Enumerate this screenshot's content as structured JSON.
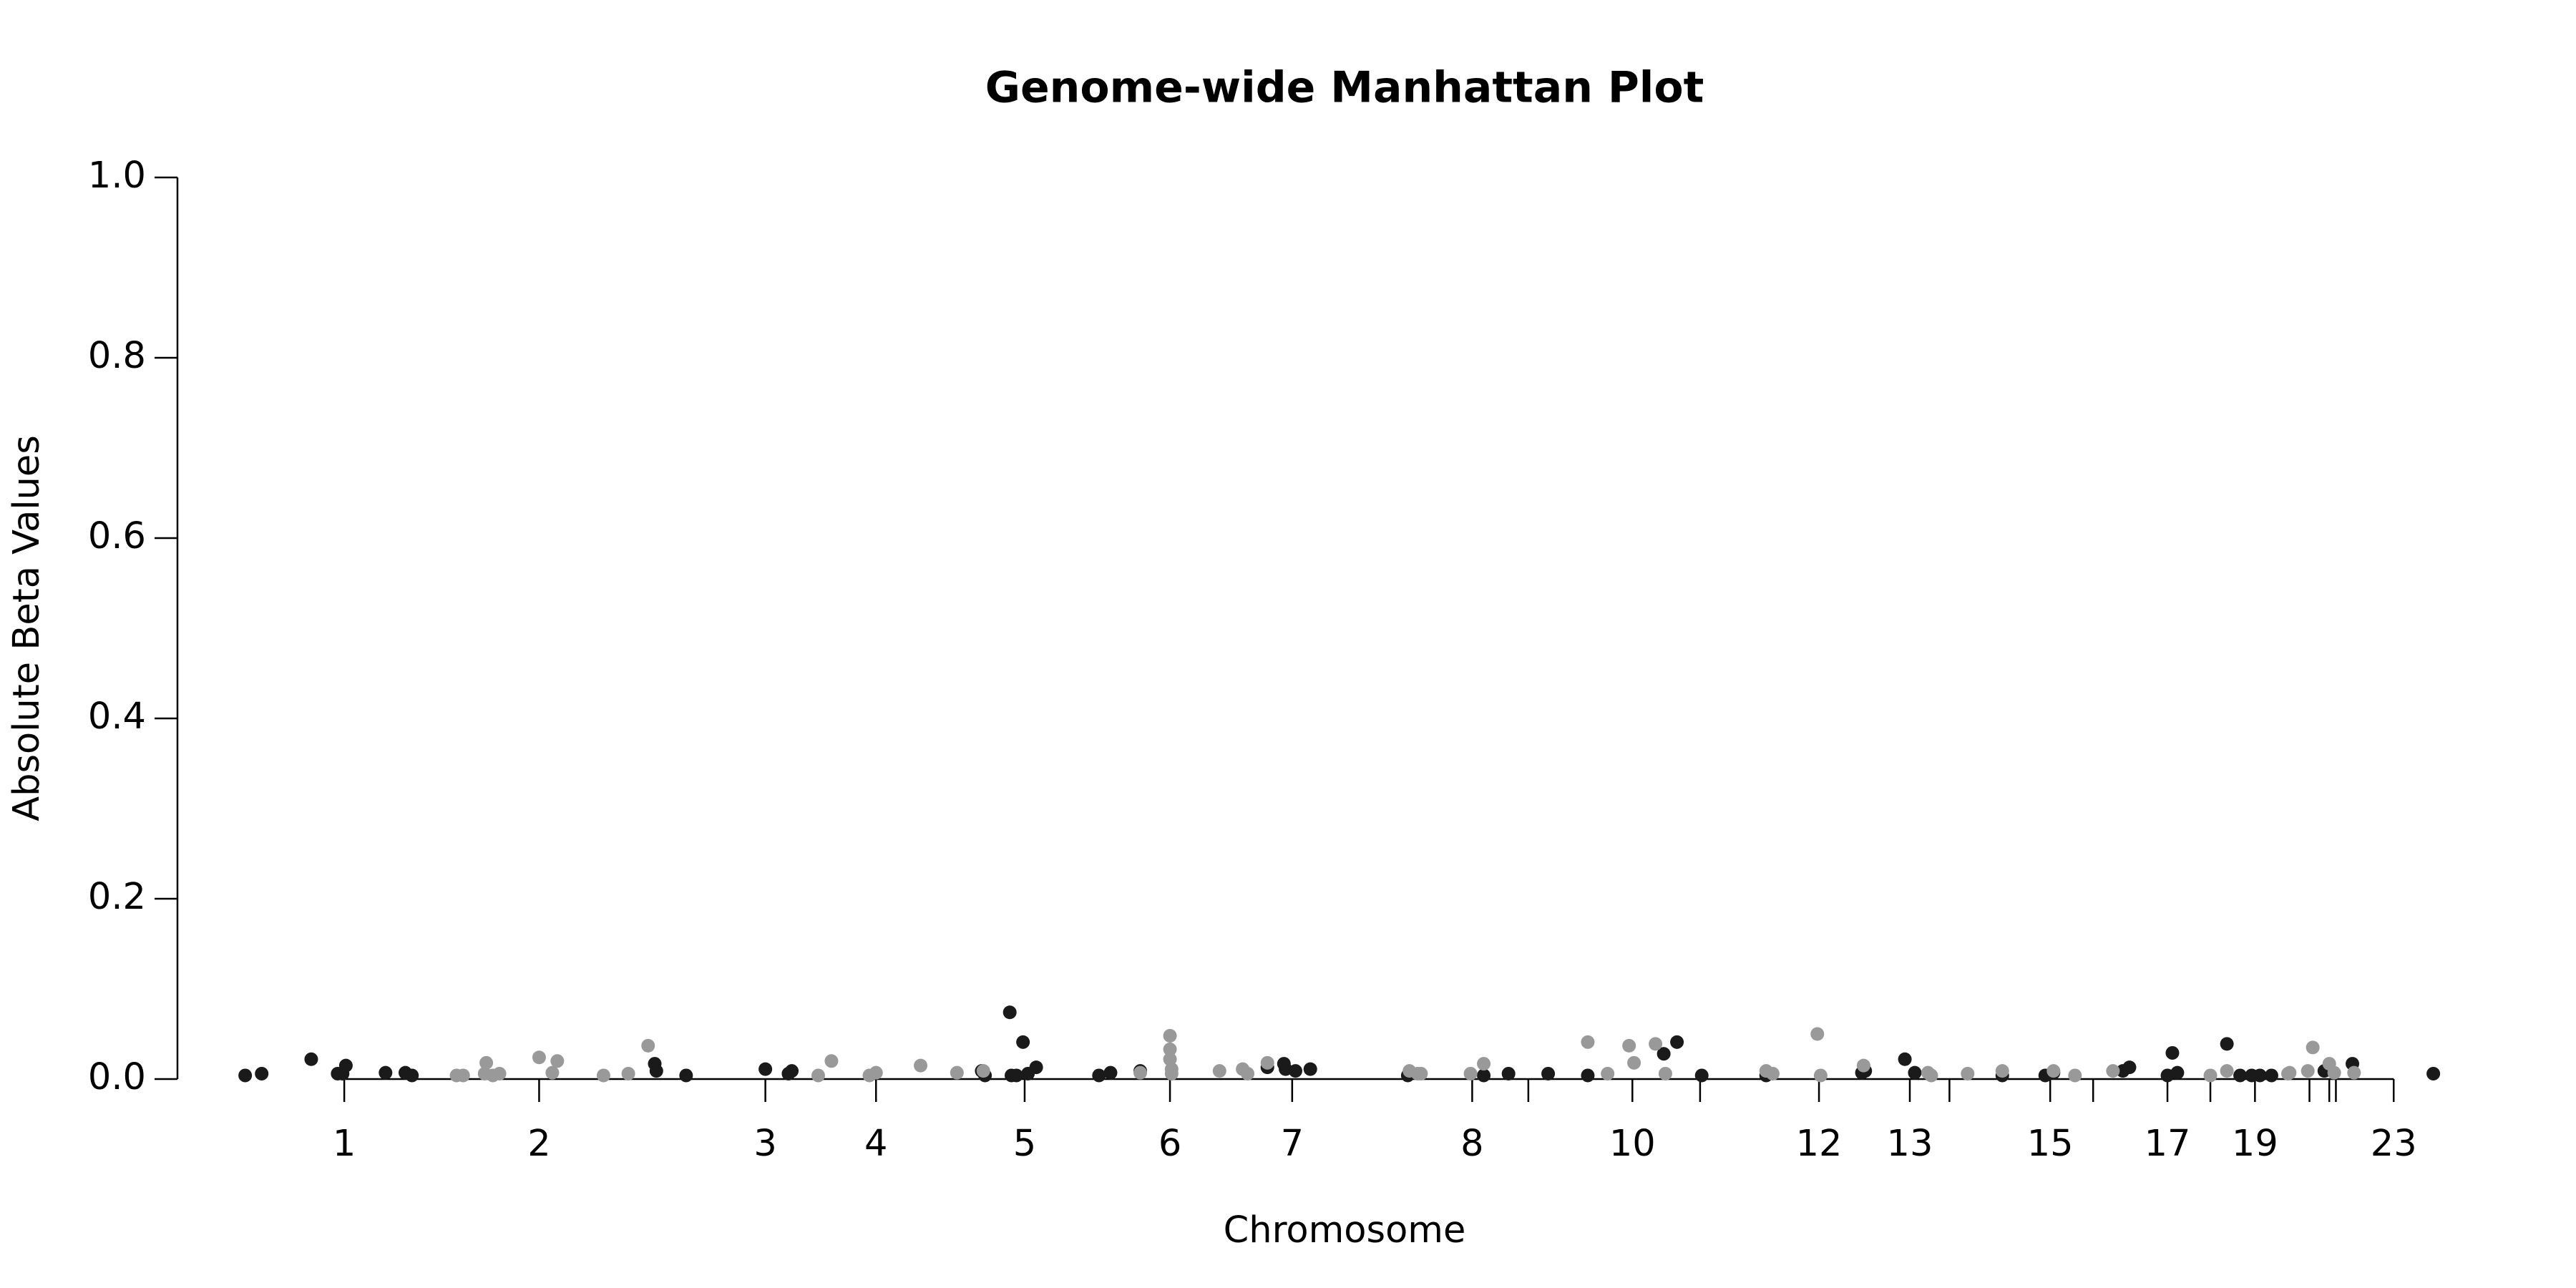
{
  "chart_data": {
    "type": "scatter",
    "title": "Genome-wide Manhattan Plot",
    "x_label": "Chromosome",
    "y_label": "Absolute Beta Values",
    "xlim": [
      0,
      1390
    ],
    "ylim": [
      0,
      1
    ],
    "yticks": [
      {
        "value": 0,
        "label": "0.0"
      },
      0.2,
      0.4,
      0.6,
      0.8,
      {
        "value": 1,
        "label": "1.0"
      }
    ],
    "xticks": [
      {
        "value": 101,
        "label": "1"
      },
      {
        "value": 219,
        "label": "2"
      },
      {
        "value": 356,
        "label": "3"
      },
      {
        "value": 423,
        "label": "4"
      },
      {
        "value": 513,
        "label": "5"
      },
      {
        "value": 601,
        "label": "6"
      },
      {
        "value": 675,
        "label": "7"
      },
      {
        "value": 784,
        "label": "8"
      },
      {
        "value": 818,
        "label": null
      },
      {
        "value": 881,
        "label": "10"
      },
      {
        "value": 922,
        "label": null
      },
      {
        "value": 994,
        "label": "12"
      },
      {
        "value": 1049,
        "label": "13"
      },
      {
        "value": 1073,
        "label": null
      },
      {
        "value": 1134,
        "label": "15"
      },
      {
        "value": 1160,
        "label": null
      },
      {
        "value": 1205,
        "label": "17"
      },
      {
        "value": 1231,
        "label": null
      },
      {
        "value": 1258,
        "label": "19"
      },
      {
        "value": 1291,
        "label": null
      },
      {
        "value": 1303,
        "label": null
      },
      {
        "value": 1307,
        "label": null
      },
      {
        "value": 1342,
        "label": "23"
      }
    ],
    "series": [
      {
        "color": "#1a1a1a",
        "x": [
          41,
          51,
          81,
          97,
          100,
          102,
          126,
          138,
          142,
          289,
          290,
          308,
          356,
          370,
          372,
          487,
          489,
          504,
          505,
          508,
          512,
          515,
          520,
          558,
          565,
          583,
          660,
          670,
          671,
          677,
          686,
          745,
          791,
          806,
          830,
          854,
          900,
          908,
          923,
          962,
          1020,
          1022,
          1046,
          1052,
          1105,
          1131,
          1136,
          1178,
          1182,
          1205,
          1208,
          1211,
          1241,
          1249,
          1256,
          1261,
          1268,
          1300,
          1317,
          1366
        ],
        "values": [
          0.004,
          0.006,
          0.022,
          0.006,
          0.006,
          0.015,
          0.007,
          0.007,
          0.004,
          0.017,
          0.009,
          0.004,
          0.011,
          0.006,
          0.009,
          0.009,
          0.004,
          0.074,
          0.004,
          0.004,
          0.041,
          0.006,
          0.013,
          0.004,
          0.007,
          0.009,
          0.013,
          0.017,
          0.011,
          0.009,
          0.011,
          0.004,
          0.004,
          0.006,
          0.006,
          0.004,
          0.028,
          0.041,
          0.004,
          0.004,
          0.007,
          0.009,
          0.022,
          0.007,
          0.004,
          0.004,
          0.007,
          0.009,
          0.013,
          0.004,
          0.029,
          0.007,
          0.039,
          0.004,
          0.004,
          0.004,
          0.004,
          0.009,
          0.017,
          0.006
        ]
      },
      {
        "color": "#999999",
        "x": [
          169,
          173,
          186,
          187,
          191,
          195,
          219,
          227,
          230,
          258,
          273,
          285,
          388,
          396,
          419,
          423,
          450,
          472,
          488,
          583,
          601,
          601,
          601,
          602,
          602,
          631,
          645,
          648,
          660,
          746,
          751,
          753,
          783,
          791,
          854,
          866,
          879,
          882,
          895,
          901,
          962,
          966,
          993,
          995,
          1021,
          1060,
          1062,
          1084,
          1105,
          1136,
          1149,
          1172,
          1231,
          1241,
          1278,
          1279,
          1290,
          1293,
          1303,
          1306,
          1318
        ],
        "values": [
          0.004,
          0.004,
          0.006,
          0.018,
          0.004,
          0.006,
          0.024,
          0.007,
          0.02,
          0.004,
          0.006,
          0.037,
          0.004,
          0.02,
          0.004,
          0.007,
          0.015,
          0.007,
          0.009,
          0.007,
          0.048,
          0.033,
          0.022,
          0.011,
          0.006,
          0.009,
          0.011,
          0.006,
          0.018,
          0.009,
          0.006,
          0.006,
          0.006,
          0.017,
          0.041,
          0.006,
          0.037,
          0.018,
          0.039,
          0.006,
          0.009,
          0.006,
          0.05,
          0.004,
          0.015,
          0.007,
          0.004,
          0.006,
          0.009,
          0.009,
          0.004,
          0.009,
          0.004,
          0.009,
          0.006,
          0.007,
          0.009,
          0.035,
          0.017,
          0.007,
          0.007
        ]
      }
    ]
  }
}
